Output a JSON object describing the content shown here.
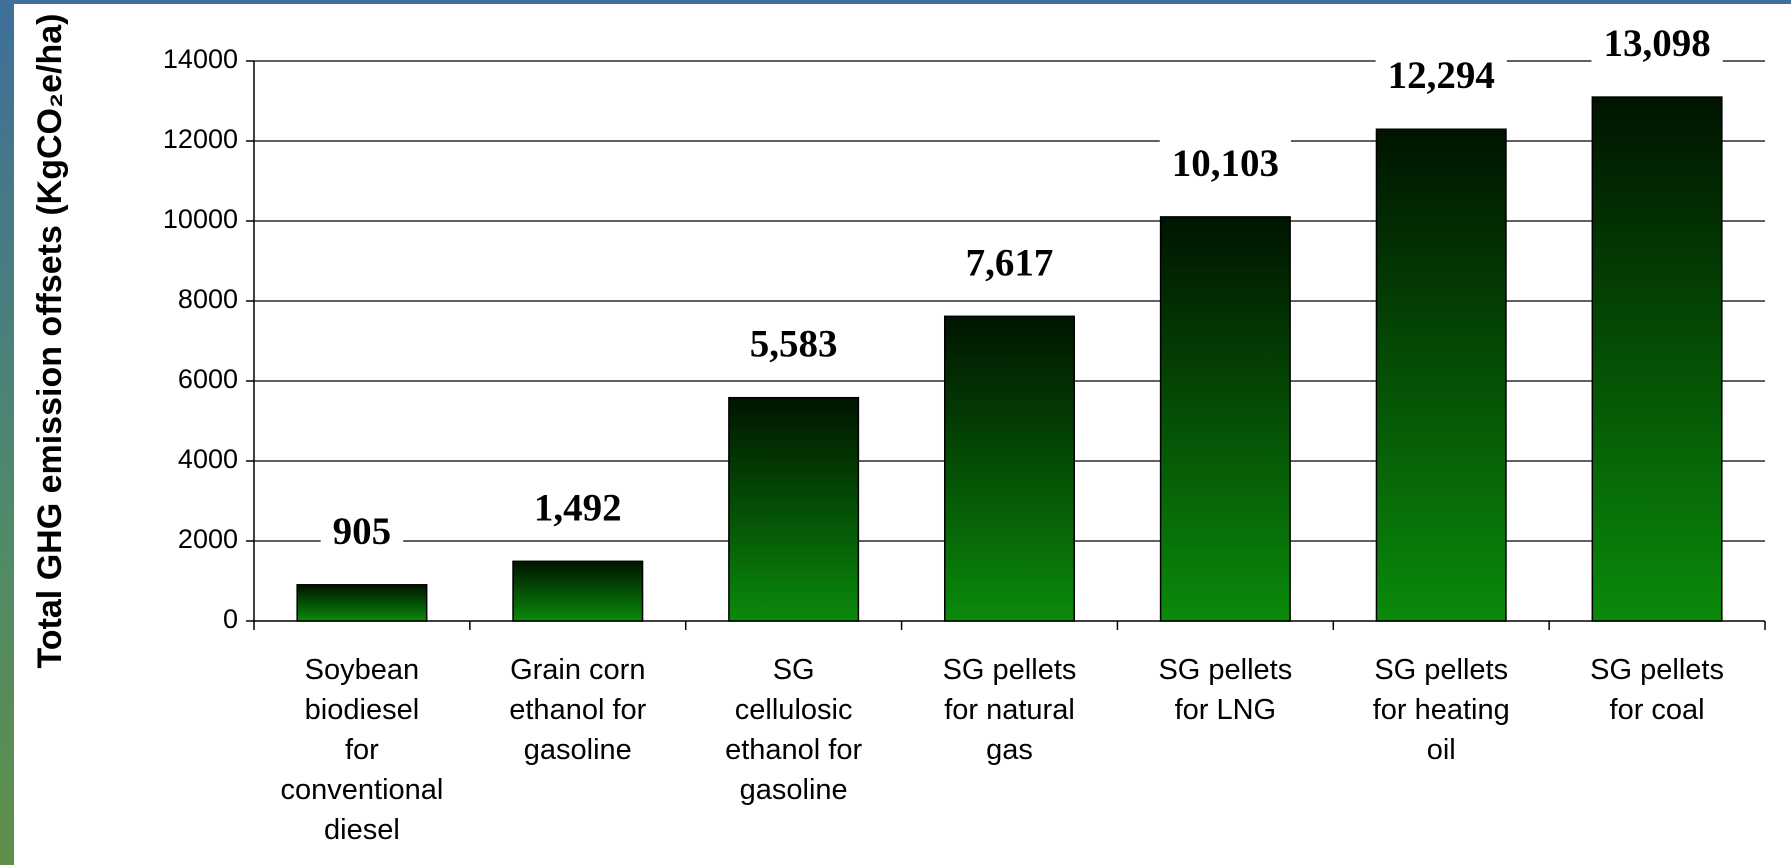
{
  "chart_data": {
    "type": "bar",
    "y_label": "Total GHG emission offsets (KgCO₂e/ha)",
    "categories": [
      "Soybean biodiesel for conventional diesel",
      "Grain corn ethanol for gasoline",
      "SG cellulosic ethanol for gasoline",
      "SG pellets for natural gas",
      "SG pellets for LNG",
      "SG pellets for heating oil",
      "SG pellets for coal"
    ],
    "values": [
      905,
      1492,
      5583,
      7617,
      10103,
      12294,
      13098
    ],
    "value_labels": [
      "905",
      "1,492",
      "5,583",
      "7,617",
      "10,103",
      "12,294",
      "13,098"
    ],
    "color": "#0a8a0a",
    "ylim": [
      0,
      14000
    ],
    "yticks": [
      0,
      2000,
      4000,
      6000,
      8000,
      10000,
      12000,
      14000
    ],
    "grid": true
  }
}
